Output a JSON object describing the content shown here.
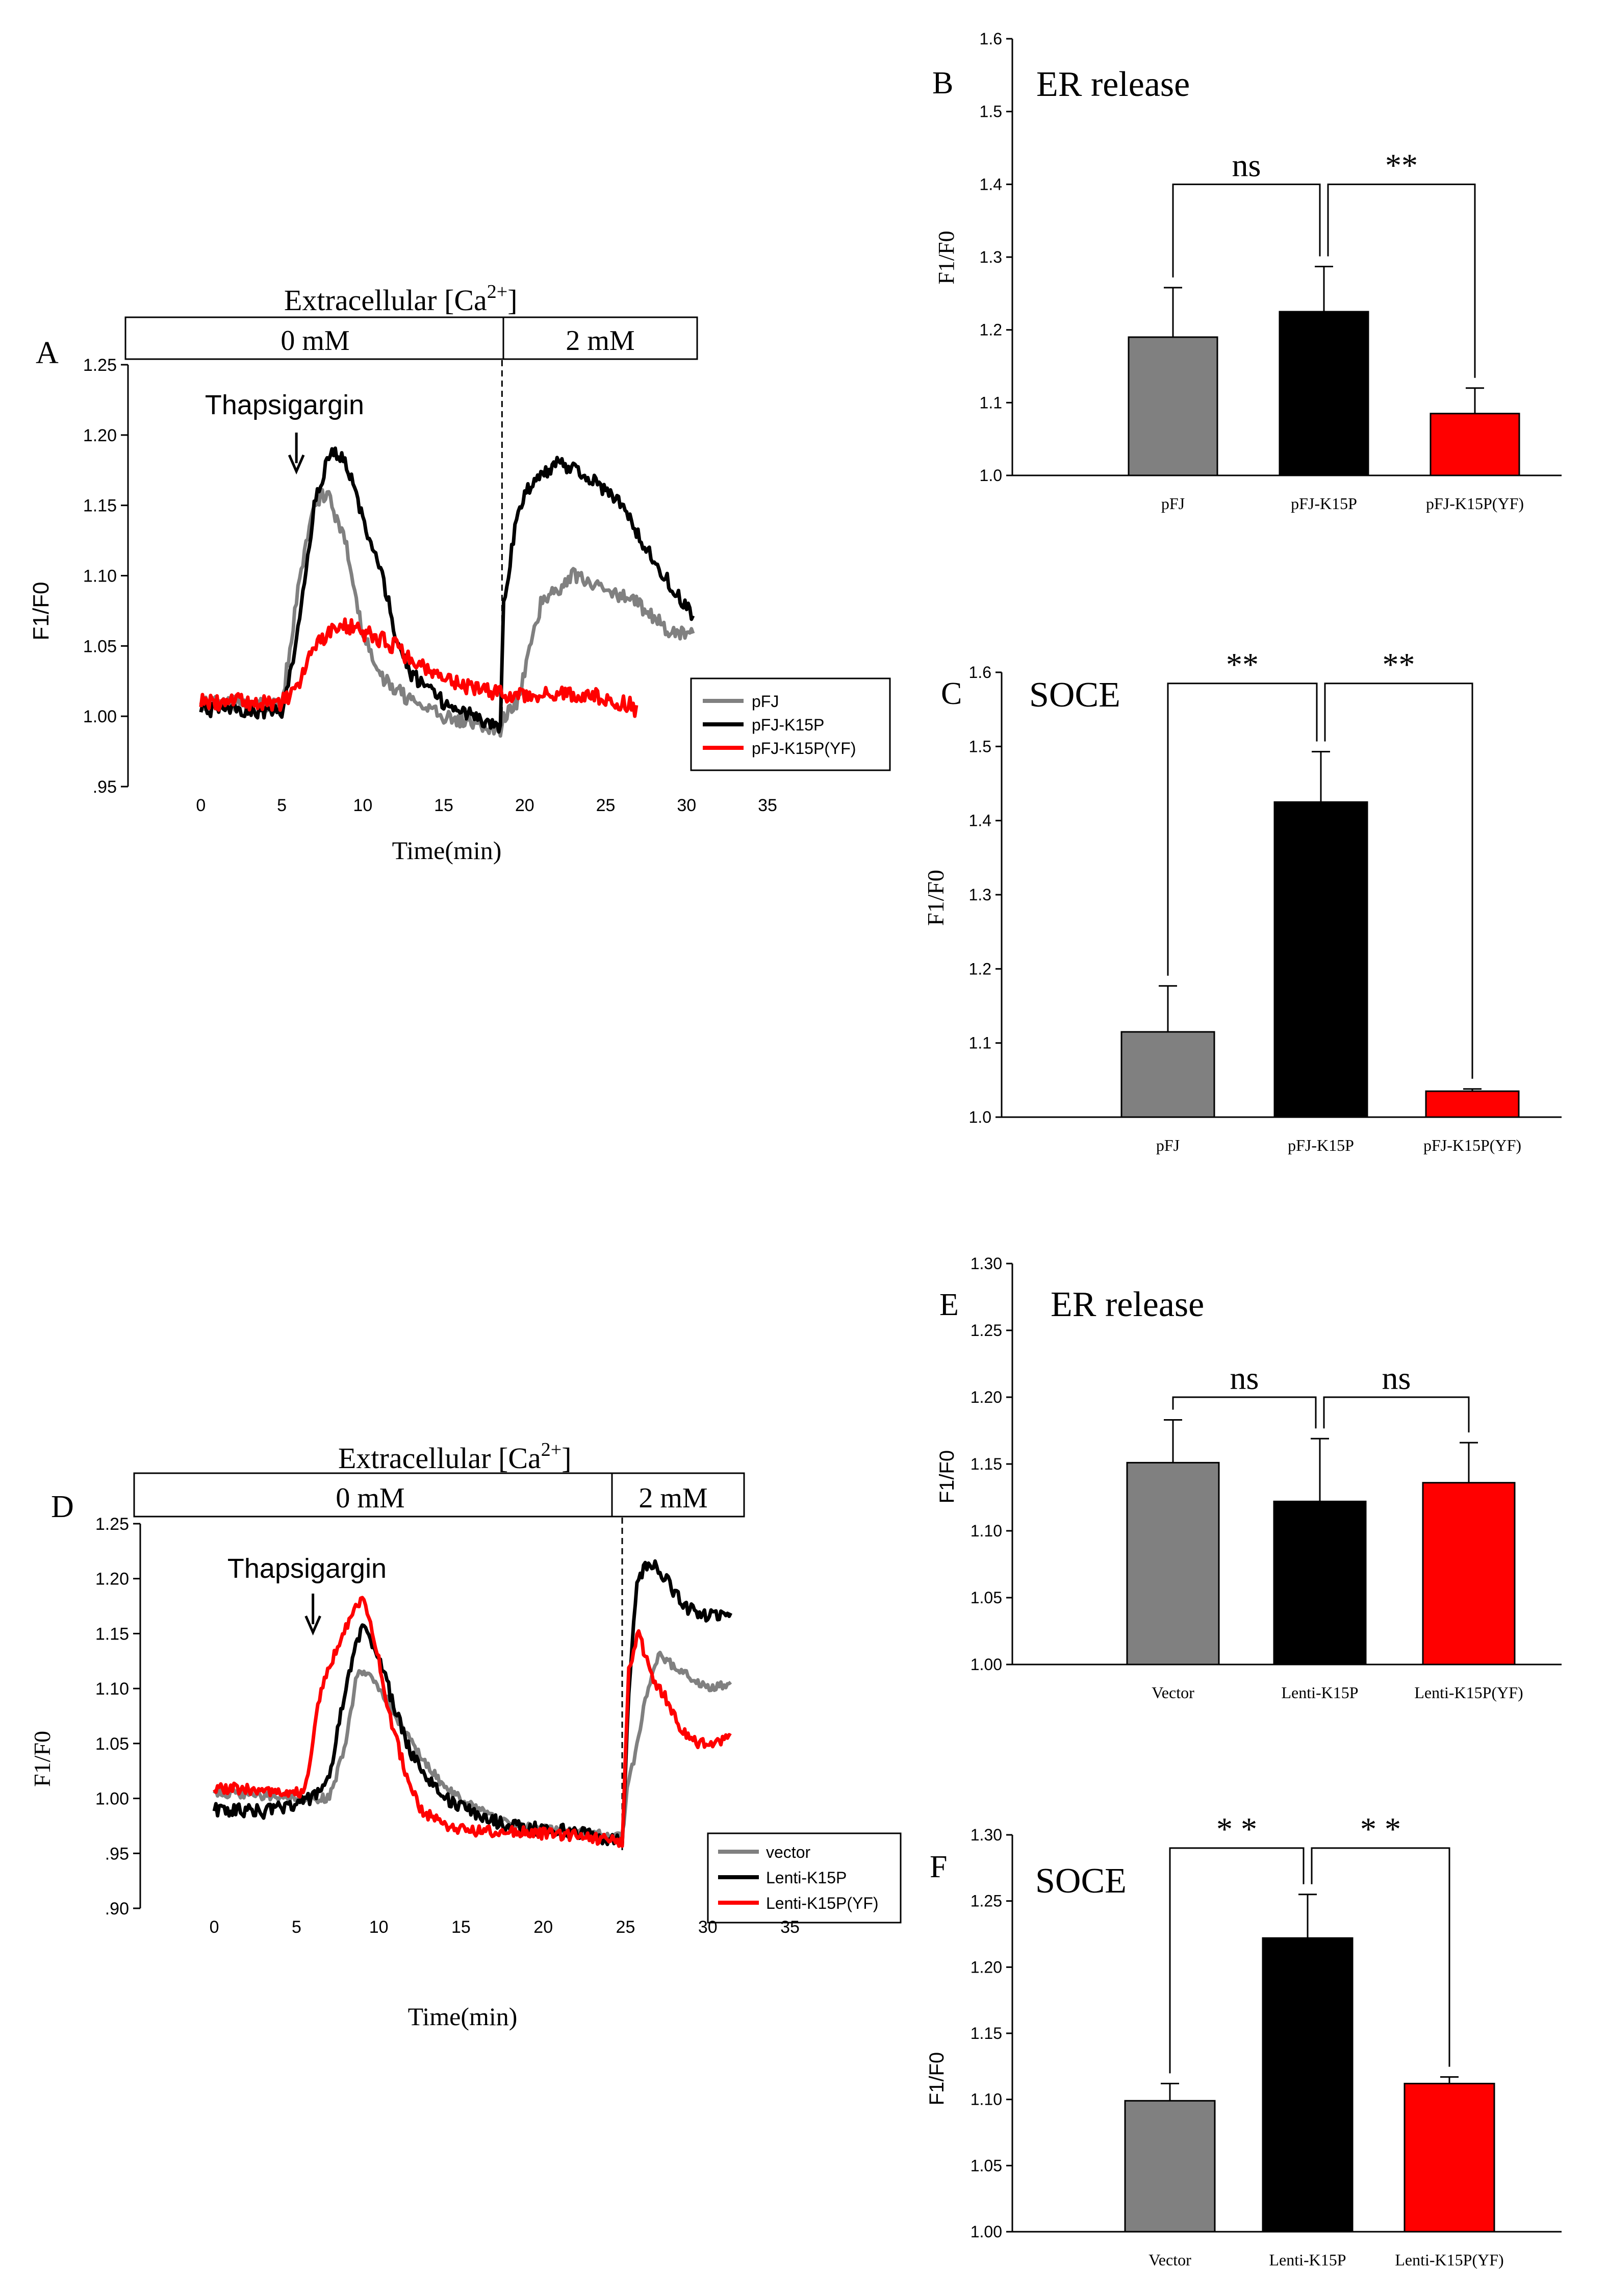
{
  "colors": {
    "gray": "#808080",
    "black": "#000000",
    "red": "#ff0000"
  },
  "chart_data": [
    {
      "panel": "A",
      "type": "line",
      "header": "Extracellular",
      "header_ion": "[Ca",
      "header_sup": "2+",
      "header_close": "]",
      "phase1": "0  mM",
      "phase2": "2 mM",
      "phase_boundary_min": 18.6,
      "annotation": "Thapsigargin",
      "annotation_x_min": 5.9,
      "xlabel": "Time(min)",
      "ylabel": "F1/F0",
      "xlim": [
        -4.5,
        35
      ],
      "ylim": [
        0.95,
        1.25
      ],
      "xticks": [
        0,
        5,
        10,
        15,
        20,
        25,
        30,
        35
      ],
      "yticks": [
        0.95,
        1.0,
        1.05,
        1.1,
        1.15,
        1.2,
        1.25
      ],
      "ytick_labels": [
        ".95",
        "1.00",
        "1.05",
        "1.10",
        "1.15",
        "1.20",
        "1.25"
      ],
      "series": [
        {
          "name": "pFJ",
          "color": "#808080",
          "noise": 0.005,
          "x": [
            0,
            5,
            6,
            7,
            7.8,
            9,
            10,
            11,
            13,
            15,
            17,
            18.5,
            18.7,
            19.5,
            20,
            21,
            22,
            23,
            25,
            27,
            29,
            30.5
          ],
          "y": [
            1.01,
            1.008,
            1.09,
            1.15,
            1.16,
            1.12,
            1.06,
            1.03,
            1.01,
            1.0,
            0.995,
            0.99,
            1.0,
            1.01,
            1.03,
            1.08,
            1.09,
            1.1,
            1.09,
            1.08,
            1.06,
            1.06
          ]
        },
        {
          "name": "pFJ-K15P",
          "color": "#000000",
          "noise": 0.005,
          "x": [
            0,
            5,
            6,
            7,
            8,
            9,
            10,
            11,
            12,
            13,
            15,
            17,
            18.5,
            18.7,
            19.5,
            20,
            21,
            22,
            24,
            26,
            28,
            30.5
          ],
          "y": [
            1.005,
            1.003,
            1.06,
            1.15,
            1.19,
            1.18,
            1.14,
            1.11,
            1.06,
            1.03,
            1.01,
            1.0,
            0.99,
            1.08,
            1.14,
            1.16,
            1.17,
            1.18,
            1.17,
            1.15,
            1.11,
            1.07
          ]
        },
        {
          "name": "pFJ-K15P(YF)",
          "color": "#ff0000",
          "noise": 0.006,
          "x": [
            0,
            5,
            6,
            7,
            8,
            9,
            10,
            11,
            12,
            13,
            15,
            17,
            19,
            20,
            22,
            24,
            26,
            27
          ],
          "y": [
            1.01,
            1.01,
            1.02,
            1.05,
            1.06,
            1.065,
            1.06,
            1.055,
            1.05,
            1.04,
            1.025,
            1.02,
            1.015,
            1.015,
            1.015,
            1.015,
            1.01,
            1.005
          ]
        }
      ]
    },
    {
      "panel": "B",
      "type": "bar",
      "title": "ER  release",
      "ylabel": "F1/F0",
      "categories": [
        "pFJ",
        "pFJ-K15P",
        "pFJ-K15P(YF)"
      ],
      "values": [
        1.19,
        1.225,
        1.085
      ],
      "errors": [
        0.068,
        0.062,
        0.035
      ],
      "ylim": [
        1.0,
        1.6
      ],
      "yticks": [
        1.0,
        1.1,
        1.2,
        1.3,
        1.4,
        1.5,
        1.6
      ],
      "ytick_labels": [
        "1.0",
        "1.1",
        "1.2",
        "1.3",
        "1.4",
        "1.5",
        "1.6"
      ],
      "comparisons": [
        {
          "from": 0,
          "to": 1,
          "label": "ns",
          "level": 1.4
        },
        {
          "from": 1,
          "to": 2,
          "label": "**",
          "level": 1.4
        }
      ]
    },
    {
      "panel": "C",
      "type": "bar",
      "title": "SOCE",
      "ylabel": "F1/F0",
      "categories": [
        "pFJ",
        "pFJ-K15P",
        "pFJ-K15P(YF)"
      ],
      "values": [
        1.115,
        1.425,
        1.035
      ],
      "errors": [
        0.062,
        0.068,
        0.003
      ],
      "ylim": [
        1.0,
        1.6
      ],
      "yticks": [
        1.0,
        1.1,
        1.2,
        1.3,
        1.4,
        1.5,
        1.6
      ],
      "ytick_labels": [
        "1.0",
        "1.1",
        "1.2",
        "1.3",
        "1.4",
        "1.5",
        "1.6"
      ],
      "comparisons": [
        {
          "from": 0,
          "to": 1,
          "label": "**",
          "level": 1.585
        },
        {
          "from": 1,
          "to": 2,
          "label": "**",
          "level": 1.585
        }
      ]
    },
    {
      "panel": "D",
      "type": "line",
      "header": "Extracellular",
      "header_ion": "[Ca",
      "header_sup": "2+",
      "header_close": "]",
      "phase1": "0  mM",
      "phase2": "2 mM",
      "phase_boundary_min": 24.8,
      "annotation": "Thapsigargin",
      "annotation_x_min": 6.0,
      "xlabel": "Time(min)",
      "ylabel": "F1/F0",
      "xlim": [
        -4.5,
        35
      ],
      "ylim": [
        0.9,
        1.25
      ],
      "xticks": [
        0,
        5,
        10,
        15,
        20,
        25,
        30,
        35
      ],
      "yticks": [
        0.9,
        0.95,
        1.0,
        1.05,
        1.1,
        1.15,
        1.2,
        1.25
      ],
      "ytick_labels": [
        ".90",
        ".95",
        "1.00",
        "1.05",
        "1.10",
        "1.15",
        "1.20",
        "1.25"
      ],
      "series": [
        {
          "name": "vector",
          "color": "#808080",
          "noise": 0.004,
          "x": [
            0,
            6,
            7,
            8,
            8.7,
            9.5,
            10.5,
            12,
            14,
            16,
            18,
            20,
            22,
            24.8,
            25.2,
            25.6,
            26.2,
            27,
            28,
            29,
            30,
            31.5
          ],
          "y": [
            1.005,
            1.0,
            1.0,
            1.05,
            1.115,
            1.11,
            1.09,
            1.05,
            1.01,
            0.99,
            0.975,
            0.972,
            0.97,
            0.965,
            1.02,
            1.04,
            1.09,
            1.13,
            1.12,
            1.11,
            1.1,
            1.105
          ]
        },
        {
          "name": "Lenti-K15P",
          "color": "#000000",
          "noise": 0.006,
          "x": [
            0,
            3,
            6,
            7,
            8,
            9,
            10,
            11,
            12,
            14,
            16,
            18,
            20,
            22,
            24.8,
            25.2,
            25.7,
            26.5,
            27.5,
            28.5,
            30,
            31.5
          ],
          "y": [
            0.99,
            0.988,
            1.0,
            1.02,
            1.1,
            1.16,
            1.13,
            1.08,
            1.04,
            1.0,
            0.985,
            0.975,
            0.972,
            0.97,
            0.96,
            1.1,
            1.2,
            1.215,
            1.2,
            1.175,
            1.165,
            1.17
          ]
        },
        {
          "name": "Lenti-K15P(YF)",
          "color": "#ff0000",
          "noise": 0.005,
          "x": [
            0,
            5.5,
            6.5,
            7.5,
            8.2,
            9,
            9.8,
            10.6,
            11.5,
            12.5,
            14,
            16,
            18,
            20,
            22,
            24.8,
            25.2,
            25.8,
            26.6,
            27.5,
            28.5,
            29.5,
            30.5,
            31.5
          ],
          "y": [
            1.01,
            1.005,
            1.1,
            1.14,
            1.16,
            1.185,
            1.14,
            1.08,
            1.03,
            0.99,
            0.975,
            0.97,
            0.97,
            0.968,
            0.966,
            0.96,
            1.12,
            1.15,
            1.11,
            1.09,
            1.06,
            1.05,
            1.05,
            1.055
          ]
        }
      ]
    },
    {
      "panel": "E",
      "type": "bar",
      "title": "ER release",
      "ylabel": "F1/F0",
      "categories": [
        "Vector",
        "Lenti-K15P",
        "Lenti-K15P(YF)"
      ],
      "values": [
        1.151,
        1.122,
        1.136
      ],
      "errors": [
        0.032,
        0.047,
        0.03
      ],
      "ylim": [
        1.0,
        1.3
      ],
      "yticks": [
        1.0,
        1.05,
        1.1,
        1.15,
        1.2,
        1.25,
        1.3
      ],
      "ytick_labels": [
        "1.00",
        "1.05",
        "1.10",
        "1.15",
        "1.20",
        "1.25",
        "1.30"
      ],
      "comparisons": [
        {
          "from": 0,
          "to": 1,
          "label": "ns",
          "level": 1.2
        },
        {
          "from": 1,
          "to": 2,
          "label": "ns",
          "level": 1.2
        }
      ]
    },
    {
      "panel": "F",
      "type": "bar",
      "title": "SOCE",
      "ylabel": "F1/F0",
      "categories": [
        "Vector",
        "Lenti-K15P",
        "Lenti-K15P(YF)"
      ],
      "values": [
        1.099,
        1.222,
        1.112
      ],
      "errors": [
        0.013,
        0.033,
        0.005
      ],
      "ylim": [
        1.0,
        1.3
      ],
      "yticks": [
        1.0,
        1.05,
        1.1,
        1.15,
        1.2,
        1.25,
        1.3
      ],
      "ytick_labels": [
        "1.00",
        "1.05",
        "1.10",
        "1.15",
        "1.20",
        "1.25",
        "1.30"
      ],
      "comparisons": [
        {
          "from": 0,
          "to": 1,
          "label": "* *",
          "level": 1.29
        },
        {
          "from": 1,
          "to": 2,
          "label": "* *",
          "level": 1.29
        }
      ]
    }
  ]
}
